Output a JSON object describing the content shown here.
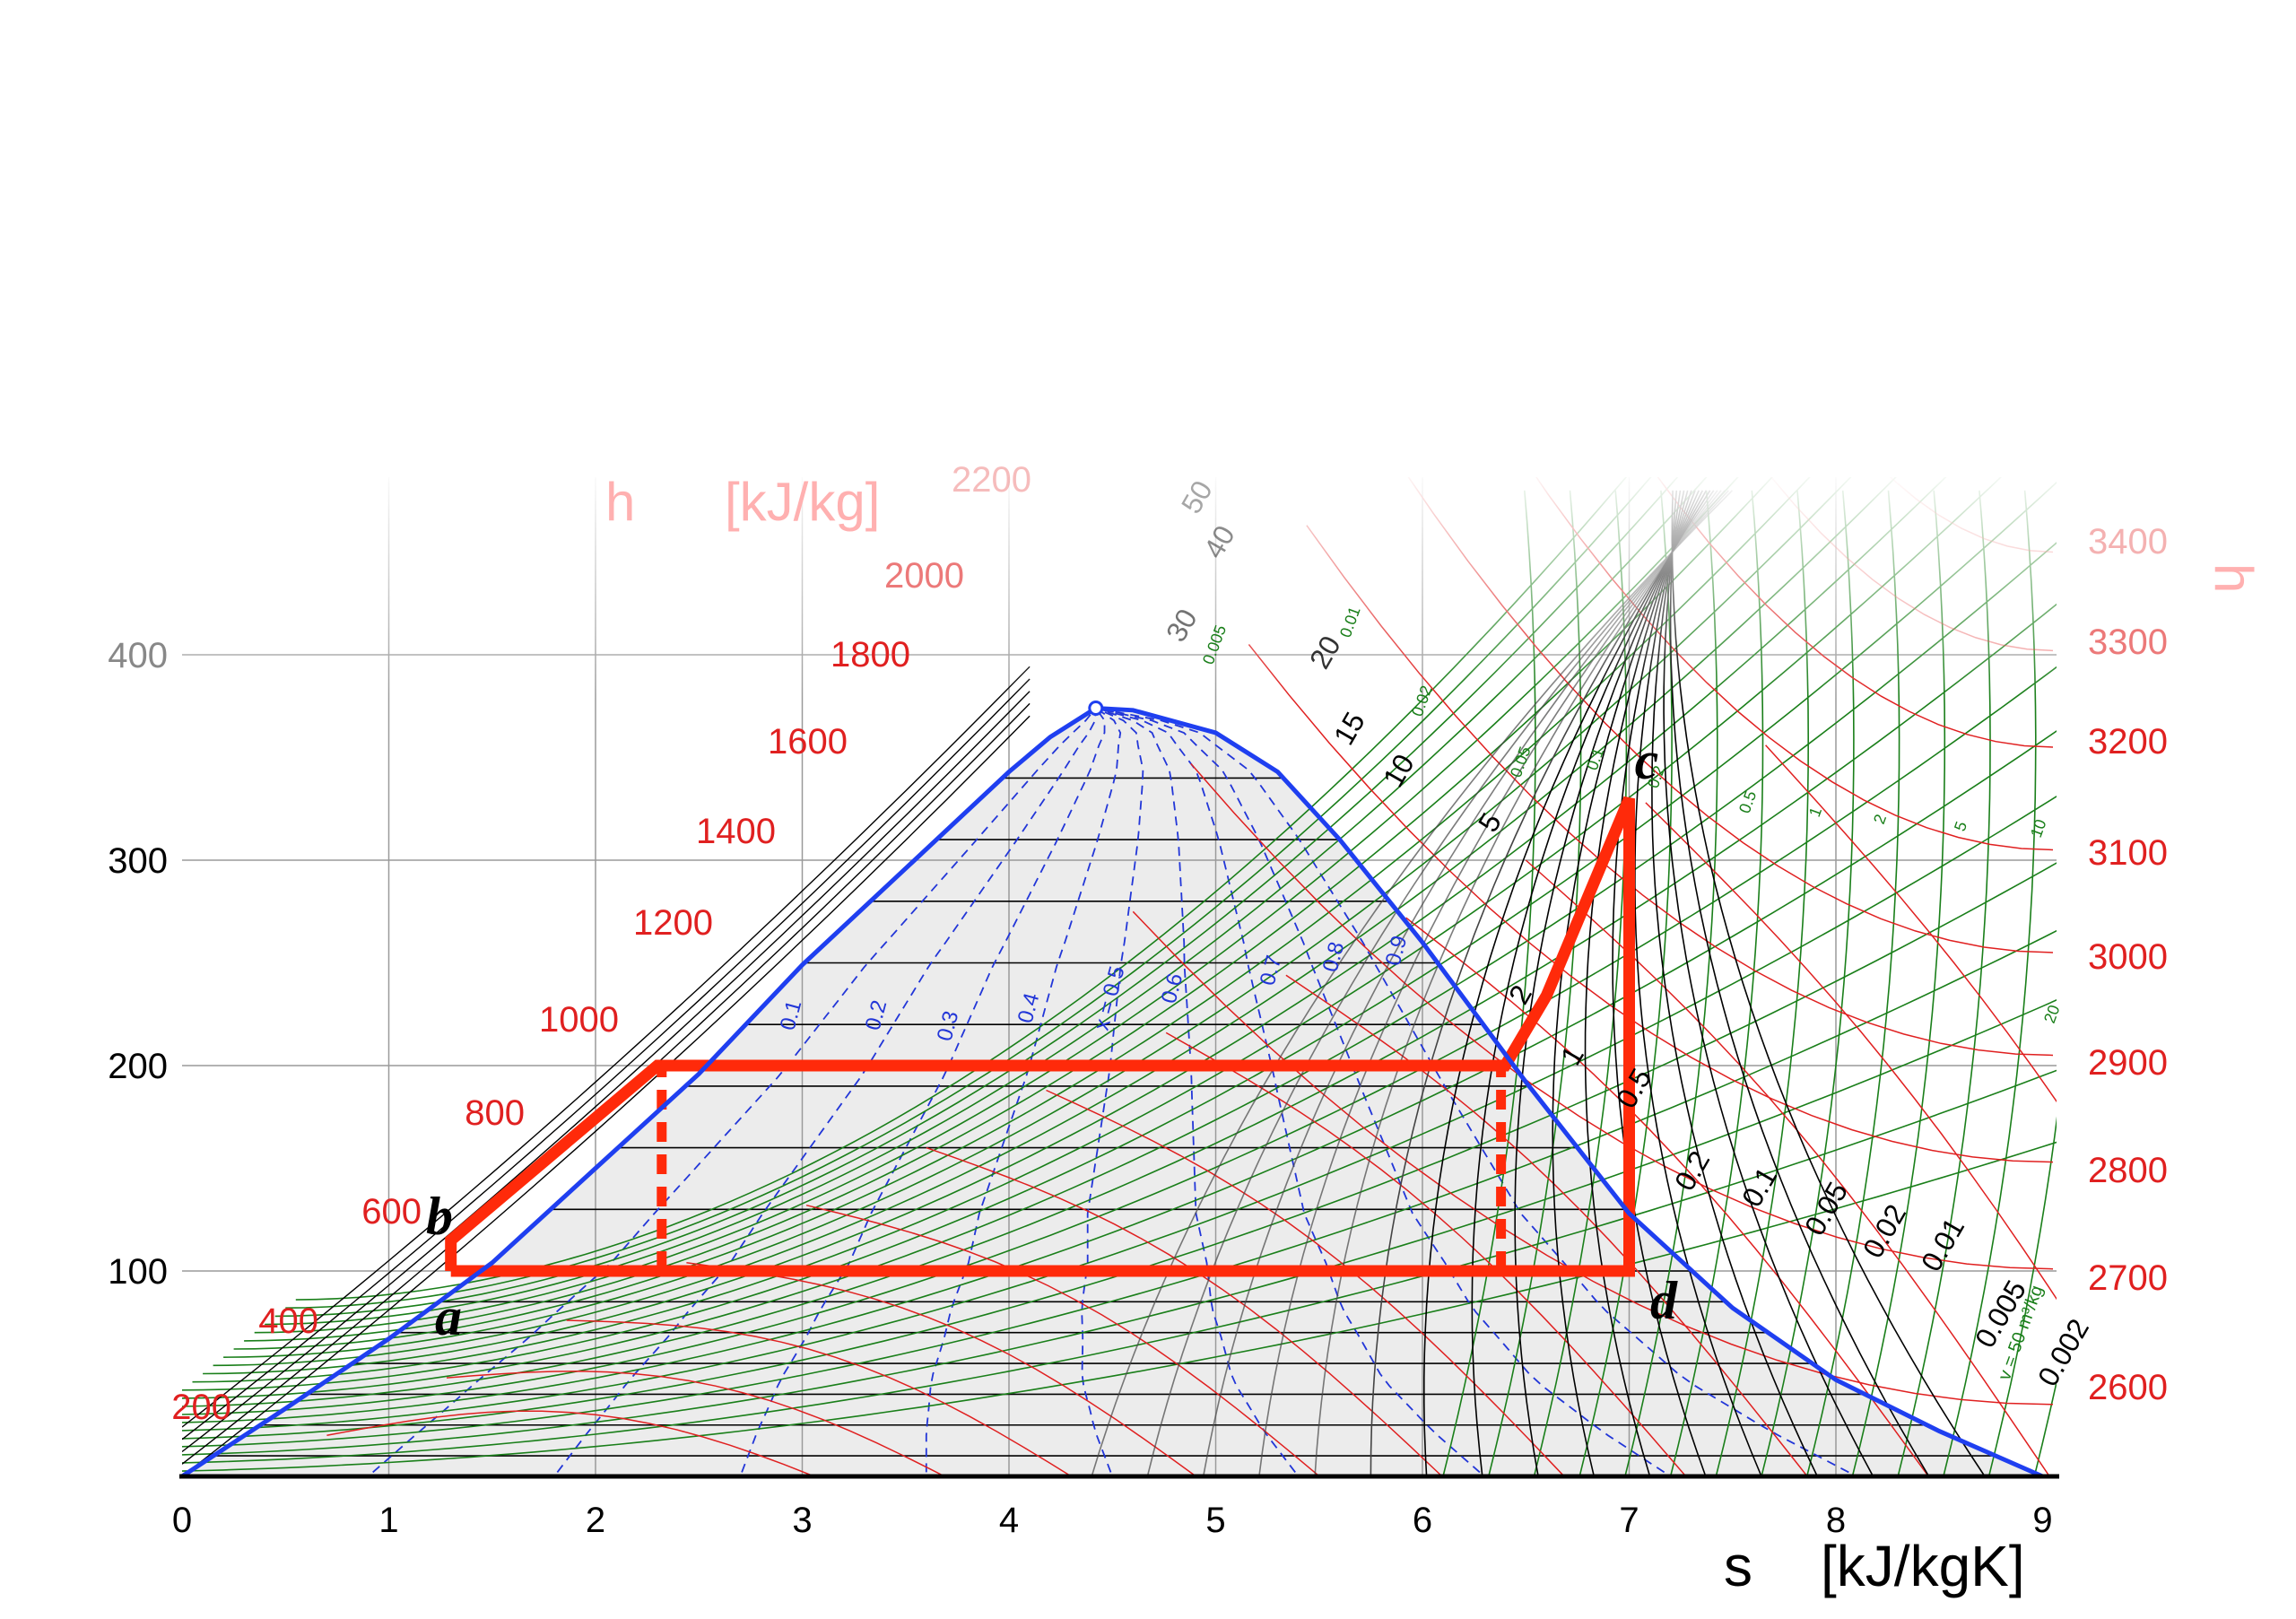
{
  "chart_data": {
    "type": "line",
    "title": "",
    "xlabel": "s",
    "xunit": "[kJ/kgK]",
    "ylabel": "",
    "y2label": "h",
    "h_label": "h",
    "h_unit": "[kJ/kg]",
    "xlim": [
      0,
      9
    ],
    "ylim": [
      0,
      480
    ],
    "grid": true,
    "x_ticks": [
      "0",
      "1",
      "2",
      "3",
      "4",
      "5",
      "6",
      "7",
      "8",
      "9"
    ],
    "y_ticks": [
      "100",
      "200",
      "300",
      "400"
    ],
    "enthalpy_ticks_left": [
      "200",
      "400",
      "600",
      "800",
      "1000",
      "1200",
      "1400",
      "1600",
      "1800",
      "2000",
      "2200"
    ],
    "enthalpy_ticks_right": [
      "2600",
      "2700",
      "2800",
      "2900",
      "3000",
      "3100",
      "3200",
      "3300",
      "3400"
    ],
    "quality_labels": [
      "0.1",
      "0.2",
      "0.3",
      "0.4",
      "x = 0.5",
      "0.6",
      "0.7",
      "0.8",
      "0.9"
    ],
    "pressure_labels": [
      "50",
      "40",
      "30",
      "20",
      "15",
      "10",
      "5",
      "2",
      "1",
      "0.5",
      "0.2",
      "0.1",
      "0.05",
      "0.02",
      "0.01",
      "0.005",
      "0.002"
    ],
    "volume_labels": [
      "0.005",
      "0.01",
      "0.02",
      "0.05",
      "0.1",
      "0.2",
      "0.5",
      "1",
      "2",
      "5",
      "10",
      "20",
      "v = 50 m³/kg"
    ],
    "colors": {
      "saturation_dome": "#1f3ff0",
      "cycle": "#ff2a0a",
      "enthalpy_lines": "#e02020",
      "quality_lines": "#2236d8",
      "volume_lines": "#1a7f1a",
      "pressure_lines": "#000000",
      "grid": "#9a9a9a",
      "dome_fill": "#ececec"
    },
    "saturation_dome": [
      [
        0,
        0
      ],
      [
        0.5,
        33
      ],
      [
        1,
        67
      ],
      [
        1.5,
        104
      ],
      [
        2,
        150
      ],
      [
        2.5,
        196
      ],
      [
        3,
        249
      ],
      [
        3.5,
        296
      ],
      [
        4,
        343
      ],
      [
        4.2,
        360
      ],
      [
        4.42,
        374
      ],
      [
        4.6,
        373
      ],
      [
        5,
        362
      ],
      [
        5.3,
        343
      ],
      [
        5.6,
        310
      ],
      [
        6,
        260
      ],
      [
        6.5,
        192
      ],
      [
        7,
        128
      ],
      [
        7.5,
        82
      ],
      [
        8,
        47
      ],
      [
        8.5,
        22
      ],
      [
        9,
        0
      ]
    ],
    "critical_point": [
      4.42,
      374
    ],
    "cycle": {
      "points": [
        {
          "label": "a",
          "s": 1.3,
          "T": 100
        },
        {
          "label": "b",
          "s": 1.3,
          "T": 115
        },
        {
          "label": "c",
          "s": 7.0,
          "T": 330
        },
        {
          "label": "d",
          "s": 7.0,
          "T": 100
        }
      ],
      "path": [
        [
          1.3,
          100
        ],
        [
          1.3,
          115
        ],
        [
          2.3,
          200
        ],
        [
          6.4,
          200
        ],
        [
          6.6,
          234
        ],
        [
          7.0,
          330
        ],
        [
          7.0,
          100
        ],
        [
          1.3,
          100
        ]
      ],
      "dashed_verticals": [
        [
          [
            2.32,
            100
          ],
          [
            2.32,
            200
          ]
        ],
        [
          [
            6.38,
            100
          ],
          [
            6.38,
            200
          ]
        ]
      ]
    }
  }
}
